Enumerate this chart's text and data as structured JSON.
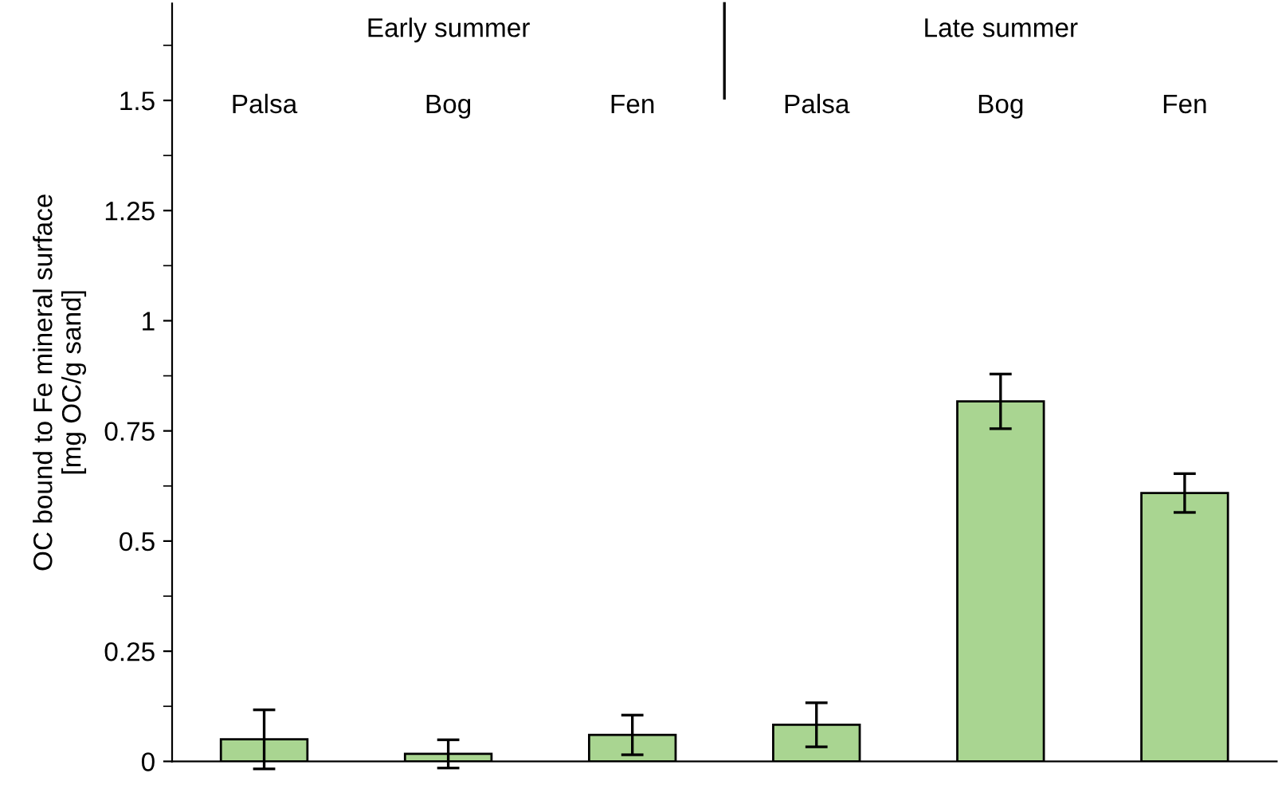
{
  "chart_data": {
    "type": "bar",
    "categories": [
      "Palsa",
      "Bog",
      "Fen",
      "Palsa",
      "Bog",
      "Fen"
    ],
    "values": [
      0.05,
      0.017,
      0.06,
      0.083,
      0.817,
      0.609
    ],
    "errors": [
      0.067,
      0.032,
      0.045,
      0.05,
      0.062,
      0.044
    ],
    "color": "#a9d591",
    "ylabel": "OC bound to Fe mineral surface\n[mg OC/g sand]",
    "ylim": [
      0,
      1.72
    ],
    "yticks": [
      0,
      0.25,
      0.5,
      0.75,
      1,
      1.25,
      1.5
    ],
    "annotations": [
      "Early summer",
      "Late summer"
    ],
    "grid": false
  }
}
